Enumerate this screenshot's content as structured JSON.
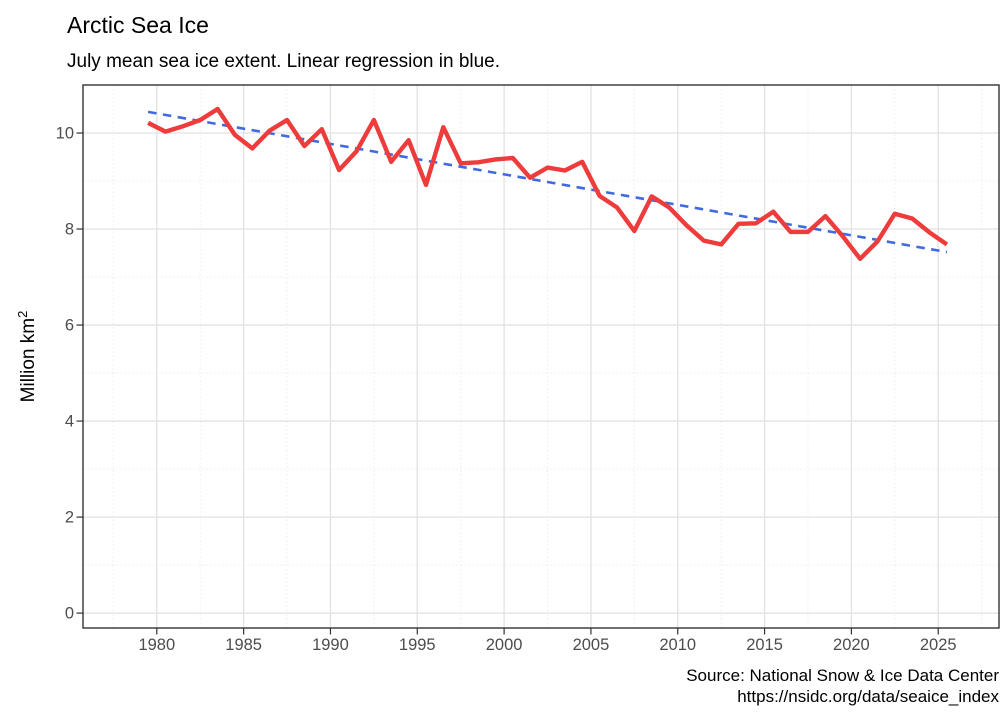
{
  "title": "Arctic Sea Ice",
  "subtitle": "July mean sea ice extent. Linear regression in blue.",
  "caption": {
    "line1": "Source: National Snow & Ice Data Center",
    "line2": "https://nsidc.org/data/seaice_index"
  },
  "y_axis_title": {
    "base": "Million km",
    "superscript": "2"
  },
  "colors": {
    "data_line": "#ee3b3b",
    "trend_line": "#4169e1",
    "grid_major": "#e2e2e2",
    "grid_minor": "#ececec",
    "panel_border": "#333333",
    "tick_mark": "#333333",
    "tick_label": "#4d4d4d",
    "background": "#ffffff"
  },
  "chart_data": {
    "type": "line",
    "title": "Arctic Sea Ice",
    "subtitle": "July mean sea ice extent. Linear regression in blue.",
    "xlabel": "",
    "ylabel": "Million km2",
    "grid": true,
    "legend": "none",
    "x": [
      1979,
      1980,
      1981,
      1982,
      1983,
      1984,
      1985,
      1986,
      1987,
      1988,
      1989,
      1990,
      1991,
      1992,
      1993,
      1994,
      1995,
      1996,
      1997,
      1998,
      1999,
      2000,
      2001,
      2002,
      2003,
      2004,
      2005,
      2006,
      2007,
      2008,
      2009,
      2010,
      2011,
      2012,
      2013,
      2014,
      2015,
      2016,
      2017,
      2018,
      2019,
      2020,
      2021,
      2022,
      2023,
      2024,
      2025
    ],
    "series": [
      {
        "name": "July mean sea ice extent (million km2)",
        "style": "solid",
        "color": "#ee3b3b",
        "values": [
          10.21,
          10.03,
          10.14,
          10.27,
          10.5,
          9.96,
          9.68,
          10.05,
          10.27,
          9.73,
          10.08,
          9.23,
          9.62,
          10.27,
          9.4,
          9.85,
          8.92,
          10.12,
          9.37,
          9.39,
          9.45,
          9.48,
          9.07,
          9.28,
          9.22,
          9.4,
          8.69,
          8.45,
          7.96,
          8.68,
          8.45,
          8.08,
          7.76,
          7.68,
          8.11,
          8.12,
          8.36,
          7.94,
          7.94,
          8.27,
          7.85,
          7.38,
          7.74,
          8.32,
          8.22,
          7.93,
          7.68
        ]
      },
      {
        "name": "Linear regression",
        "style": "dashed",
        "color": "#4169e1",
        "x_points": [
          1979,
          2025
        ],
        "values": [
          10.44,
          7.52
        ]
      }
    ],
    "x_offset": 0.5,
    "x_ticks": [
      1980,
      1985,
      1990,
      1995,
      2000,
      2005,
      2010,
      2015,
      2020,
      2025
    ],
    "y_ticks": [
      0,
      2,
      4,
      6,
      8,
      10
    ],
    "x_minor_ticks": [
      1977.5,
      1982.5,
      1987.5,
      1992.5,
      1997.5,
      2002.5,
      2007.5,
      2012.5,
      2017.5,
      2022.5,
      2027.5
    ],
    "y_minor_ticks": [
      1,
      3,
      5,
      7,
      9,
      11
    ],
    "xlim": [
      1975.75,
      2028.5
    ],
    "ylim": [
      -0.31,
      11.0
    ]
  }
}
